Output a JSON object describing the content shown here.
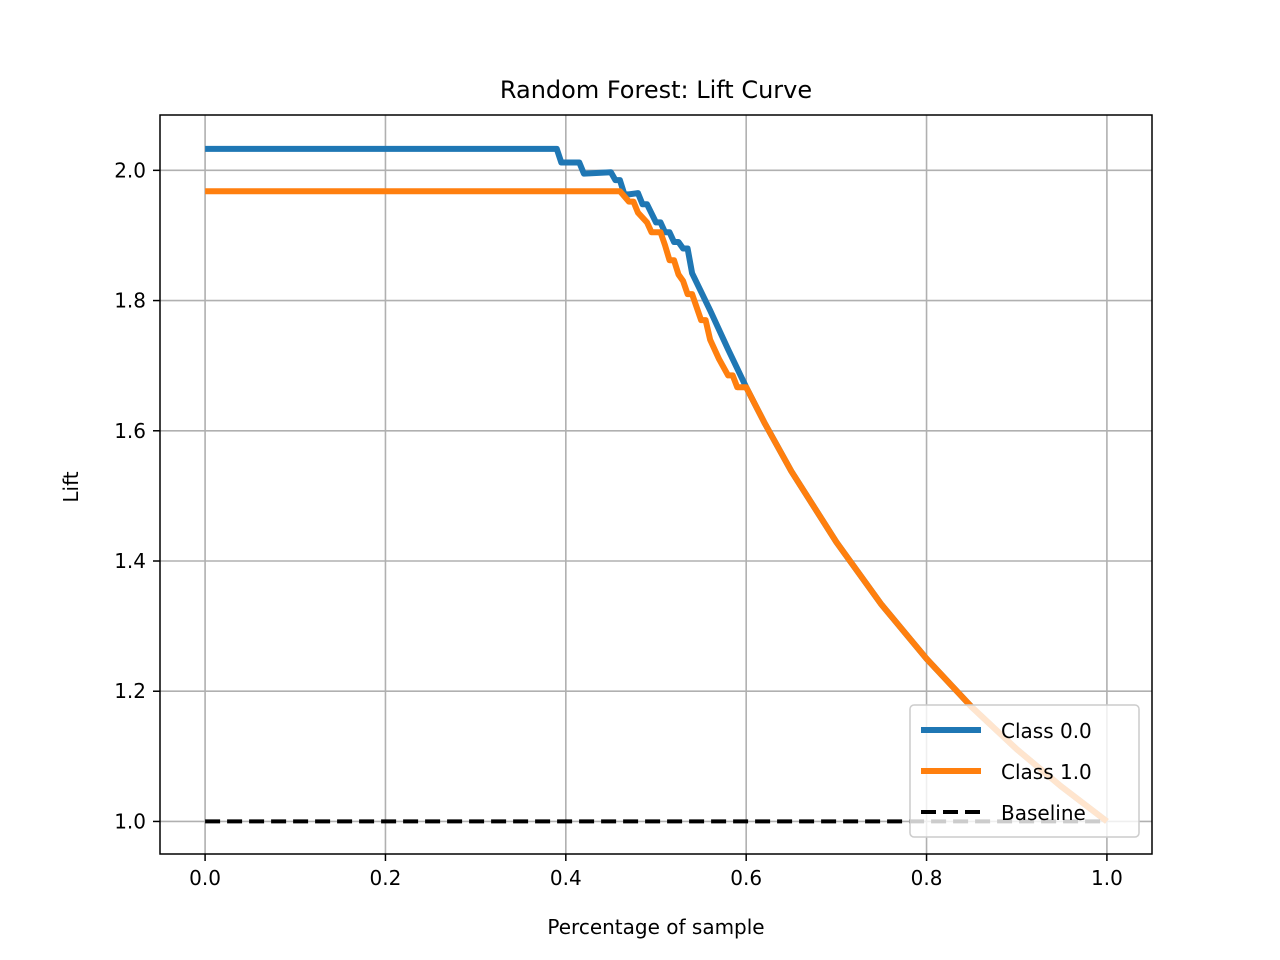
{
  "chart_data": {
    "type": "line",
    "title": "Random Forest: Lift Curve",
    "xlabel": "Percentage of sample",
    "ylabel": "Lift",
    "xlim": [
      -0.05,
      1.05
    ],
    "ylim": [
      0.95,
      2.085
    ],
    "xticks": [
      0.0,
      0.2,
      0.4,
      0.6,
      0.8,
      1.0
    ],
    "xtick_labels": [
      "0.0",
      "0.2",
      "0.4",
      "0.6",
      "0.8",
      "1.0"
    ],
    "yticks": [
      1.0,
      1.2,
      1.4,
      1.6,
      1.8,
      2.0
    ],
    "ytick_labels": [
      "1.0",
      "1.2",
      "1.4",
      "1.6",
      "1.8",
      "2.0"
    ],
    "grid": true,
    "legend_position": "lower-right",
    "series": [
      {
        "name": "Class 0.0",
        "color": "#1f77b4",
        "style": "solid",
        "x": [
          0.0,
          0.39,
          0.395,
          0.415,
          0.42,
          0.45,
          0.455,
          0.46,
          0.465,
          0.47,
          0.48,
          0.485,
          0.49,
          0.5,
          0.505,
          0.51,
          0.515,
          0.52,
          0.525,
          0.53,
          0.535,
          0.54,
          0.56,
          0.58,
          0.6,
          0.62,
          0.65,
          0.7,
          0.75,
          0.8,
          0.85,
          0.9,
          0.95,
          1.0
        ],
        "y": [
          2.033,
          2.033,
          2.012,
          2.012,
          1.995,
          1.997,
          1.985,
          1.985,
          1.963,
          1.963,
          1.965,
          1.948,
          1.948,
          1.92,
          1.92,
          1.905,
          1.905,
          1.89,
          1.89,
          1.88,
          1.88,
          1.842,
          1.785,
          1.725,
          1.667,
          1.613,
          1.538,
          1.429,
          1.333,
          1.25,
          1.176,
          1.111,
          1.053,
          1.0
        ]
      },
      {
        "name": "Class 1.0",
        "color": "#ff7f0e",
        "style": "solid",
        "x": [
          0.0,
          0.46,
          0.47,
          0.475,
          0.48,
          0.49,
          0.495,
          0.505,
          0.51,
          0.515,
          0.52,
          0.525,
          0.53,
          0.535,
          0.54,
          0.545,
          0.55,
          0.555,
          0.56,
          0.57,
          0.58,
          0.585,
          0.59,
          0.6,
          0.62,
          0.65,
          0.7,
          0.75,
          0.8,
          0.85,
          0.9,
          0.95,
          1.0
        ],
        "y": [
          1.968,
          1.968,
          1.952,
          1.952,
          1.935,
          1.92,
          1.905,
          1.905,
          1.885,
          1.862,
          1.862,
          1.84,
          1.83,
          1.81,
          1.81,
          1.79,
          1.77,
          1.77,
          1.74,
          1.71,
          1.685,
          1.685,
          1.667,
          1.667,
          1.613,
          1.538,
          1.429,
          1.333,
          1.25,
          1.176,
          1.111,
          1.053,
          1.0
        ]
      },
      {
        "name": "Baseline",
        "color": "#000000",
        "style": "dashed",
        "x": [
          0.0,
          1.0
        ],
        "y": [
          1.0,
          1.0
        ]
      }
    ]
  }
}
